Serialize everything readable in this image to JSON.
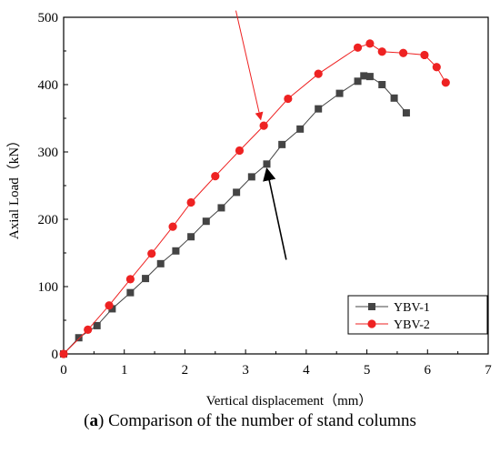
{
  "caption": {
    "letter": "a",
    "text": "Comparison of the number of stand columns"
  },
  "chart_data": {
    "type": "line",
    "title": "",
    "xlabel": "Vertical displacement（mm）",
    "ylabel": "Axial Load（kN）",
    "xlim": [
      0,
      7
    ],
    "ylim": [
      0,
      500
    ],
    "xticks": [
      0,
      1,
      2,
      3,
      4,
      5,
      6,
      7
    ],
    "yticks": [
      0,
      100,
      200,
      300,
      400,
      500
    ],
    "grid": false,
    "legend_position": "bottom-right",
    "series": [
      {
        "name": "YBV-1",
        "color": "#444444",
        "marker": "square",
        "x": [
          0,
          0.25,
          0.55,
          0.8,
          1.1,
          1.35,
          1.6,
          1.85,
          2.1,
          2.35,
          2.6,
          2.85,
          3.1,
          3.35,
          3.6,
          3.9,
          4.2,
          4.55,
          4.85,
          4.95,
          5.05,
          5.25,
          5.45,
          5.65
        ],
        "y": [
          0,
          24,
          42,
          67,
          91,
          112,
          134,
          153,
          174,
          197,
          217,
          240,
          263,
          282,
          311,
          334,
          364,
          387,
          405,
          413,
          412,
          400,
          380,
          358
        ]
      },
      {
        "name": "YBV-2",
        "color": "#ee2222",
        "marker": "circle",
        "x": [
          0,
          0.4,
          0.75,
          1.1,
          1.45,
          1.8,
          2.1,
          2.5,
          2.9,
          3.3,
          3.7,
          4.2,
          4.85,
          5.05,
          5.25,
          5.6,
          5.95,
          6.15,
          6.3
        ],
        "y": [
          0,
          36,
          72,
          111,
          149,
          189,
          225,
          264,
          302,
          339,
          379,
          416,
          455,
          461,
          449,
          447,
          444,
          426,
          403
        ]
      }
    ],
    "annotations": [
      {
        "type": "arrow",
        "color": "#ee2222",
        "from": [
          2.84,
          510
        ],
        "to": [
          3.25,
          348
        ]
      },
      {
        "type": "arrow",
        "color": "#000000",
        "from": [
          3.67,
          140
        ],
        "to": [
          3.35,
          275
        ]
      }
    ]
  }
}
